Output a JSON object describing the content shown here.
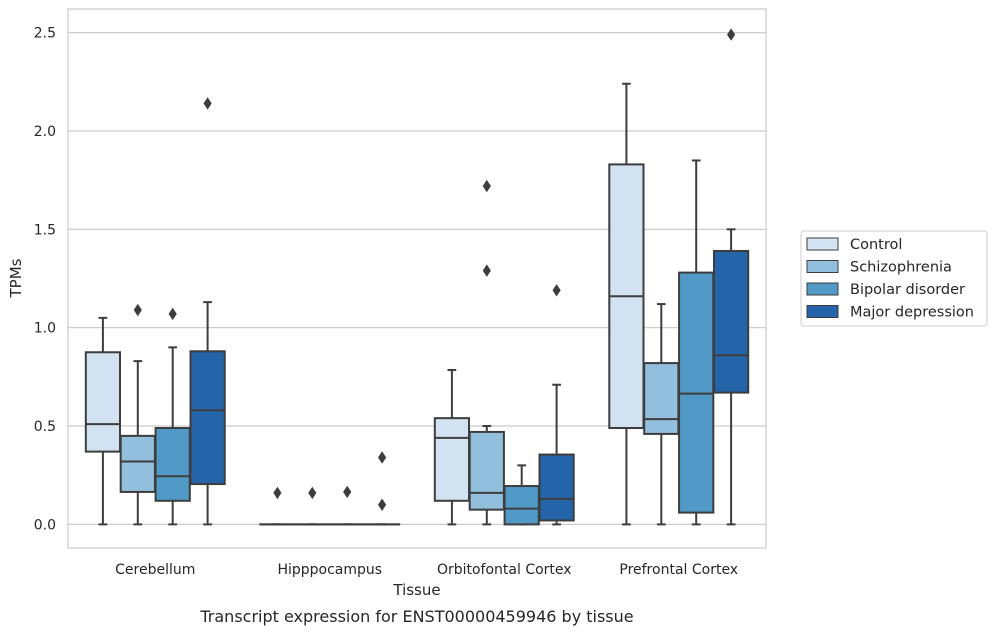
{
  "chart_data": {
    "type": "box",
    "caption": "Transcript expression for ENST00000459946 by tissue",
    "xlabel": "Tissue",
    "ylabel": "TPMs",
    "ylim": [
      -0.12,
      2.62
    ],
    "yticks": [
      0.0,
      0.5,
      1.0,
      1.5,
      2.0,
      2.5
    ],
    "ytick_labels": [
      "0.0",
      "0.5",
      "1.0",
      "1.5",
      "2.0",
      "2.5"
    ],
    "grid": "horizontal",
    "legend_position": "right",
    "categories": [
      "Cerebellum",
      "Hipppocampus",
      "Orbitofontal Cortex",
      "Prefrontal Cortex"
    ],
    "series": [
      {
        "name": "Control",
        "color": "#d3e2f1",
        "boxes": [
          {
            "whisker_low": 0.0,
            "q1": 0.37,
            "median": 0.51,
            "q3": 0.875,
            "whisker_high": 1.05,
            "outliers": []
          },
          {
            "whisker_low": 0.0,
            "q1": 0.0,
            "median": 0.0,
            "q3": 0.0,
            "whisker_high": 0.0,
            "outliers": [
              0.16
            ]
          },
          {
            "whisker_low": 0.0,
            "q1": 0.12,
            "median": 0.44,
            "q3": 0.54,
            "whisker_high": 0.785,
            "outliers": []
          },
          {
            "whisker_low": 0.0,
            "q1": 0.49,
            "median": 1.16,
            "q3": 1.83,
            "whisker_high": 2.24,
            "outliers": []
          }
        ]
      },
      {
        "name": "Schizophrenia",
        "color": "#92bfdb",
        "boxes": [
          {
            "whisker_low": 0.0,
            "q1": 0.165,
            "median": 0.32,
            "q3": 0.45,
            "whisker_high": 0.83,
            "outliers": [
              1.09
            ]
          },
          {
            "whisker_low": 0.0,
            "q1": 0.0,
            "median": 0.0,
            "q3": 0.0,
            "whisker_high": 0.0,
            "outliers": [
              0.16
            ]
          },
          {
            "whisker_low": 0.0,
            "q1": 0.075,
            "median": 0.16,
            "q3": 0.47,
            "whisker_high": 0.5,
            "outliers": [
              1.29,
              1.72
            ]
          },
          {
            "whisker_low": 0.0,
            "q1": 0.46,
            "median": 0.535,
            "q3": 0.82,
            "whisker_high": 1.12,
            "outliers": []
          }
        ]
      },
      {
        "name": "Bipolar disorder",
        "color": "#519ac8",
        "boxes": [
          {
            "whisker_low": 0.0,
            "q1": 0.12,
            "median": 0.245,
            "q3": 0.49,
            "whisker_high": 0.9,
            "outliers": [
              1.07
            ]
          },
          {
            "whisker_low": 0.0,
            "q1": 0.0,
            "median": 0.0,
            "q3": 0.0,
            "whisker_high": 0.0,
            "outliers": [
              0.165
            ]
          },
          {
            "whisker_low": 0.0,
            "q1": 0.0,
            "median": 0.08,
            "q3": 0.195,
            "whisker_high": 0.3,
            "outliers": []
          },
          {
            "whisker_low": 0.0,
            "q1": 0.06,
            "median": 0.665,
            "q3": 1.28,
            "whisker_high": 1.85,
            "outliers": []
          }
        ]
      },
      {
        "name": "Major depression",
        "color": "#2464a8",
        "boxes": [
          {
            "whisker_low": 0.0,
            "q1": 0.205,
            "median": 0.58,
            "q3": 0.88,
            "whisker_high": 1.13,
            "outliers": [
              2.14
            ]
          },
          {
            "whisker_low": 0.0,
            "q1": 0.0,
            "median": 0.0,
            "q3": 0.0,
            "whisker_high": 0.0,
            "outliers": [
              0.1,
              0.34
            ]
          },
          {
            "whisker_low": 0.0,
            "q1": 0.02,
            "median": 0.13,
            "q3": 0.355,
            "whisker_high": 0.71,
            "outliers": [
              1.19
            ]
          },
          {
            "whisker_low": 0.0,
            "q1": 0.67,
            "median": 0.86,
            "q3": 1.39,
            "whisker_high": 1.5,
            "outliers": [
              2.49
            ]
          }
        ]
      }
    ]
  }
}
